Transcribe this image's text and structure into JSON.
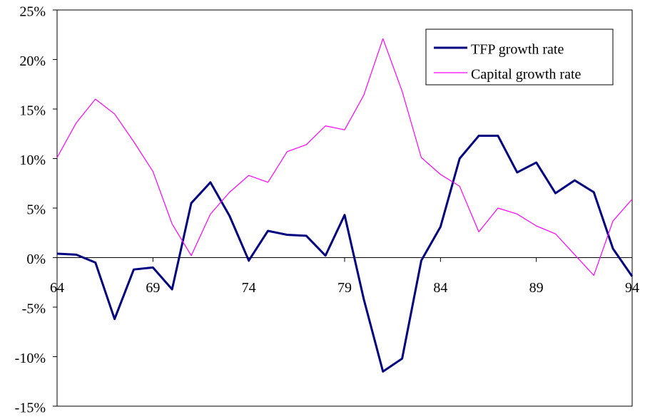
{
  "chart_data": {
    "type": "line",
    "x": [
      64,
      65,
      66,
      67,
      68,
      69,
      70,
      71,
      72,
      73,
      74,
      75,
      76,
      77,
      78,
      79,
      80,
      81,
      82,
      83,
      84,
      85,
      86,
      87,
      88,
      89,
      90,
      91,
      92,
      93,
      94
    ],
    "series": [
      {
        "name": "TFP growth rate",
        "color": "#000080",
        "values": [
          0.4,
          0.3,
          -0.5,
          -6.2,
          -1.2,
          -1.0,
          -3.2,
          5.5,
          7.6,
          4.2,
          -0.3,
          2.7,
          2.3,
          2.2,
          0.2,
          4.3,
          -4.2,
          -11.5,
          -10.2,
          -0.3,
          3.1,
          10.0,
          12.3,
          12.3,
          8.6,
          9.6,
          6.5,
          7.8,
          6.6,
          0.9,
          -1.9
        ]
      },
      {
        "name": "Capital growth rate",
        "color": "#ff00ff",
        "values": [
          10.1,
          13.6,
          16.0,
          14.5,
          11.7,
          8.7,
          3.4,
          0.2,
          4.4,
          6.6,
          8.3,
          7.6,
          10.7,
          11.4,
          13.3,
          12.9,
          16.4,
          22.1,
          16.8,
          10.1,
          8.4,
          7.2,
          2.6,
          5.0,
          4.4,
          3.2,
          2.4,
          0.3,
          -1.8,
          3.7,
          5.9
        ]
      }
    ],
    "xlim": [
      64,
      94
    ],
    "xticks": [
      64,
      69,
      74,
      79,
      84,
      89,
      94
    ],
    "ylim": [
      -15,
      25
    ],
    "yticks": [
      {
        "value": -15,
        "label": "-15%"
      },
      {
        "value": -10,
        "label": "-10%"
      },
      {
        "value": -5,
        "label": "-5%"
      },
      {
        "value": 0,
        "label": "0%"
      },
      {
        "value": 5,
        "label": "5%"
      },
      {
        "value": 10,
        "label": "10%"
      },
      {
        "value": 15,
        "label": "15%"
      },
      {
        "value": 20,
        "label": "20%"
      },
      {
        "value": 25,
        "label": "25%"
      }
    ],
    "legend": "upper right"
  }
}
